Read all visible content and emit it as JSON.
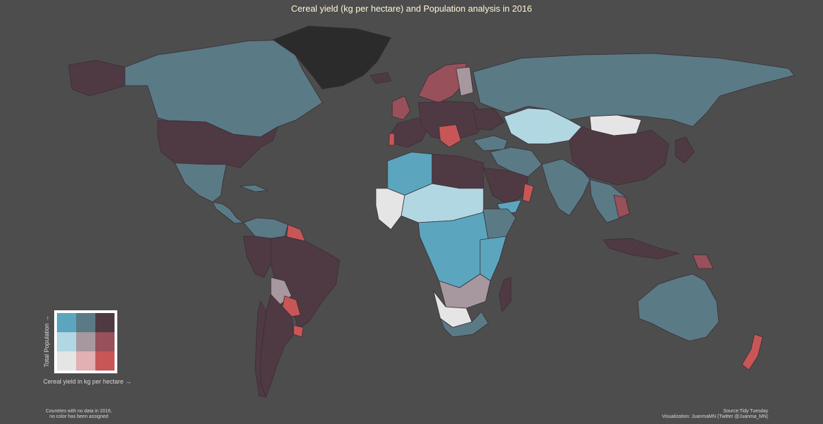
{
  "title": "Cereal yield (kg per hectare) and Population analysis in 2016",
  "legend": {
    "y_label": "Total Population →",
    "x_label": "Cereal yield in kg per hectare →",
    "palette_rows_top_to_bottom": [
      [
        "#5ba6be",
        "#5a7a86",
        "#4f3a44"
      ],
      [
        "#b1d7e2",
        "#a7979f",
        "#98505a"
      ],
      [
        "#e5e5e5",
        "#e2afb2",
        "#c95657"
      ]
    ]
  },
  "no_data_color": "#2b2b2b",
  "note_left": [
    "Countries with no data in 2016,",
    "no color has been assigned"
  ],
  "note_right": [
    "Source:Tidy Tuesday",
    "Visualization: JuanmaMN (Twitter @Juanma_MN)"
  ]
}
